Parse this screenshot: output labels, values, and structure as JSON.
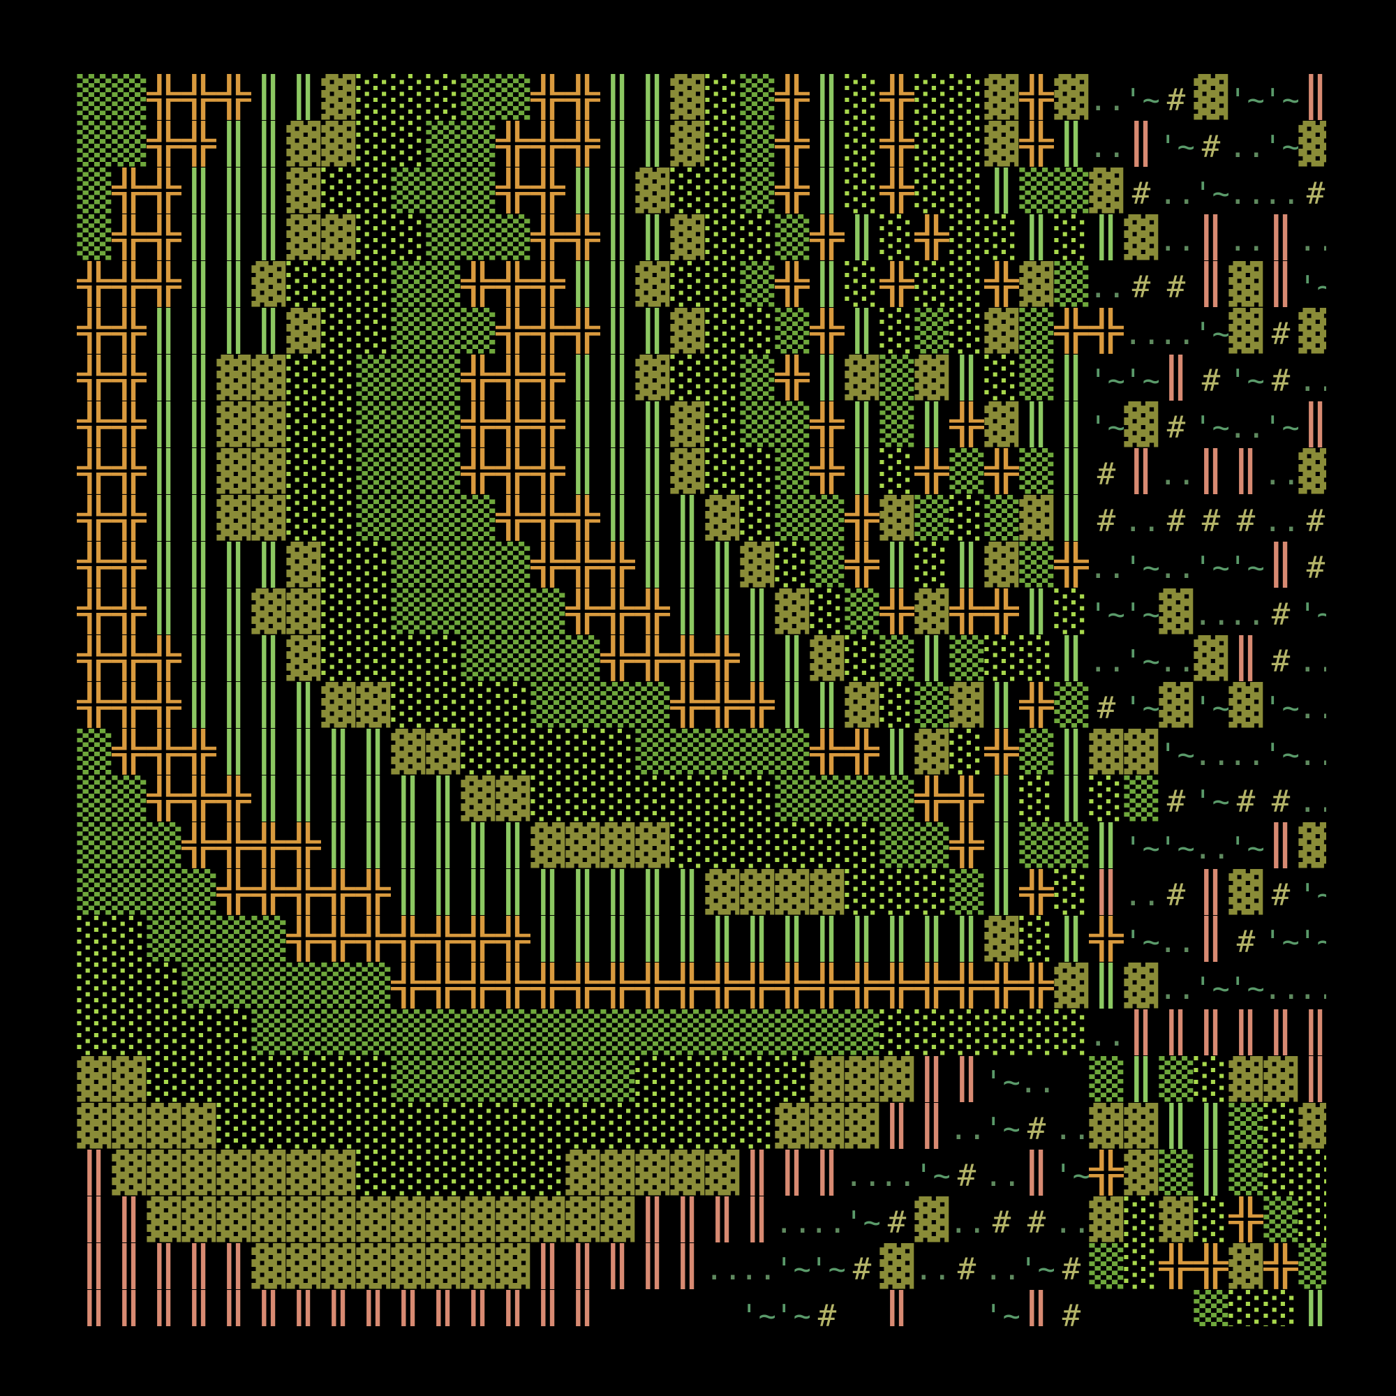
{
  "background": "#000000",
  "glyphs": {
    "D": {
      "char": "▒",
      "color": "#6fa83c",
      "name": "dense-dot-shade"
    },
    "L": {
      "char": "░",
      "color": "#a8d84c",
      "name": "light-dot-shade"
    },
    "X": {
      "char": "╬",
      "color": "#d99a3e",
      "name": "cross-box"
    },
    "V": {
      "char": "║",
      "color": "#8cc862",
      "name": "green-double-bar"
    },
    "B": {
      "char": "▓",
      "color": "#8a8c38",
      "name": "olive-block"
    },
    "P": {
      "char": "║",
      "color": "#d88a72",
      "name": "salmon-double-bar"
    },
    ".": {
      "char": "..",
      "color": "#5f8a5f",
      "name": "dots"
    },
    "~": {
      "char": "'~'",
      "color": "#5a9a6a",
      "name": "tilde"
    },
    "#": {
      "char": "#",
      "color": "#b4b468",
      "name": "hash"
    },
    " ": {
      "char": " ",
      "color": "#000000",
      "name": "blank"
    }
  },
  "rows": [
    "DDXXXVVBLLLDDXXVVBLDXVLXLLBXB.~#B~~P~",
    "DDXXVVBBLLDDXXXVVBLDXVLXLLBXV.P~#.~B~",
    "DXXVVVBLLDDDXXVVBLLDXVLXLLVDDB#.~..#.",
    "DXXVVVBBLLDDDXXVVBLLDXVLXLLVLVB.P.P.#",
    "XXXVVBLLLDDXXXVVBLLDXVLXLLXBD.##PBP~~",
    "XXVVVVBLLDDDXXXVVBLLDXVLDLBDXX..~B#B.",
    "XXVVBBLLDDDXXXVVBLLDXVBDBVLDV~~P#~#.D",
    "XXVVBBLLDDDXXXVVVBLDDXVDVXBVV~B#~.~P#",
    "XXVVBBLLDDDXXXVVVBLLDXVLXDXDV#P.PP.B#",
    "XXVVBBLLDDDDXXXVVVBLDDXBDLDBV#.###.#~",
    "XXVVVVBLLDDDDXXXVVVBLDXVLVBDX.~.~~P#.",
    "XXVVVBBLLDDDDDXXXVVVBLDXBXXVL~~B..#~.",
    "XXXVVVBLLLLDDDDXXXXVVBLDVDLLV.~.BP#. ",
    "XXXVVVVBBLLLLDDDDXXXVVBLDBVXD#~B~B~. ",
    "DXXXVVVVVBBLLLLLDDDDDXXVBLXDVBB~..~.P",
    "DDXXXVVVVVVBBLLLLLLLDDDDXXVLVLD#~##.P",
    "DDDXXXXVVVVVVBBBBLLLLLLDDXVDDV~~.~PB#",
    "DDDDXXXXXVVVVVVVVVBBBBLLLDVXLP.#PB#~~",
    "LLDDDDXXXXXXXVVVVVVVVVVVVVBLVX~.P#~~~",
    "LLLDDDDDDXXXXXXXXXXXXXXXXXXXBVB.~~...",
    "LLLLLDDDDDDDDDDDDDDDDDDLLLLLL.PPPPPP.",
    "BBLLLLLLLDDDDDDDLLLLLBBBPP~. DVDLBBP ",
    "BBBBLLLLLLLLLLLLLLLLBBBPP.~#.BBVVDLBB",
    "PBBBBBBBLLLLLLBBBBBPPP..~#.P~XBDVDLLB",
    "PPBBBBBBBBBBBBBBPPPP..~#B.##.BLBLXDLB",
    "PPPPPBBBBBBBBPPPPP..~~#B.#.~#DLXXBXDL",
    "PPPPPPPPPPPPPPP    ~~# P  ~P#   DLLVL"
  ]
}
